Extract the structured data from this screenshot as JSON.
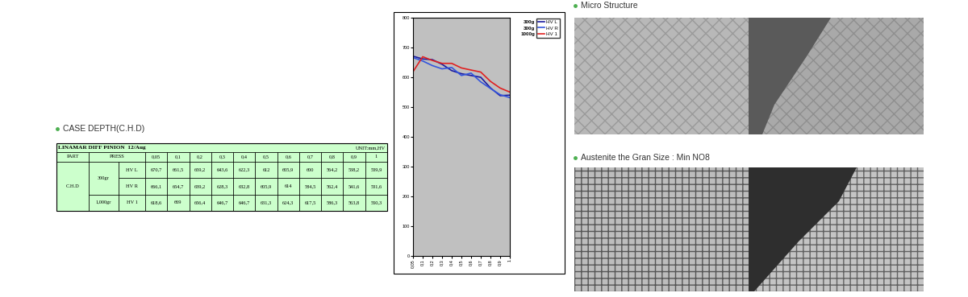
{
  "header": {
    "title": "CASE DEPTH(C.H.D)"
  },
  "chart_data": {
    "type": "line",
    "categories": [
      "0,05",
      "0,1",
      "0,2",
      "0,3",
      "0,4",
      "0,5",
      "0,6",
      "0,7",
      "0,8",
      "0,9",
      "1"
    ],
    "ylim": [
      0,
      800
    ],
    "yticks": [
      0,
      100,
      200,
      300,
      400,
      500,
      600,
      700,
      800
    ],
    "grid": false,
    "legend": "upper right",
    "annotations": [
      "300g",
      "300g",
      "1000g"
    ],
    "series": [
      {
        "name": "HV L",
        "color": "#1a1aa0",
        "values": [
          670.7,
          661.5,
          659.2,
          643.6,
          622.3,
          612,
          605.9,
          600,
          564.2,
          538.2,
          539.9
        ]
      },
      {
        "name": "HV R",
        "color": "#3355dd",
        "values": [
          666.1,
          654.7,
          639.2,
          628.3,
          632.8,
          605.9,
          614,
          584.5,
          562.4,
          541.6,
          531.6
        ]
      },
      {
        "name": "HV 1",
        "color": "#e02020",
        "values": [
          618.6,
          669,
          656.4,
          646.7,
          646.7,
          631.3,
          624.3,
          617.5,
          586.3,
          563.8,
          550.3
        ]
      }
    ]
  },
  "table": {
    "title": "LINAMAR DIFF PINION  12/Aug",
    "unit": "UNIT:mm,HV",
    "header": [
      "PART",
      "PRESS"
    ],
    "part": "C.H.D",
    "groups": [
      {
        "load": "300gr",
        "rows": [
          {
            "hv": "HV L",
            "cells": [
              "670,7",
              "661,5",
              "659,2",
              "643,6",
              "622,3",
              "612",
              "605,9",
              "600",
              "564,2",
              "538,2",
              "539,9"
            ]
          },
          {
            "hv": "HV R",
            "cells": [
              "666,1",
              "654,7",
              "639,2",
              "628,3",
              "632,8",
              "605,9",
              "614",
              "584,5",
              "562,4",
              "541,6",
              "531,6"
            ]
          }
        ]
      },
      {
        "load": "1,000gr",
        "rows": [
          {
            "hv": "HV 1",
            "cells": [
              "618,6",
              "669",
              "656,4",
              "646,7",
              "646,7",
              "631,3",
              "624,3",
              "617,5",
              "586,3",
              "563,8",
              "550,3"
            ]
          }
        ]
      }
    ]
  },
  "micrographs": [
    {
      "title": "Micro Structure"
    },
    {
      "title": "Austenite the Gran Size : Min NO8"
    }
  ]
}
